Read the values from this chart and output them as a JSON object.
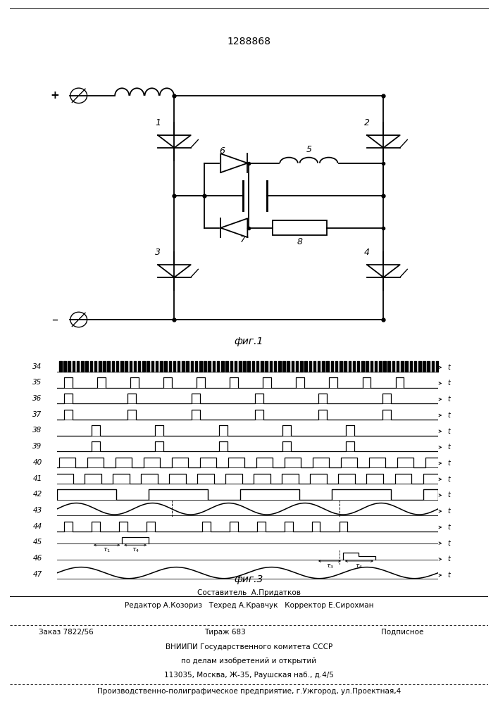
{
  "patent_number": "1288868",
  "fig1_label": "фиг.1",
  "fig3_label": "фиг.3",
  "bg_color": "#ffffff",
  "line_color": "#000000",
  "waveform_labels": [
    "34",
    "35",
    "36",
    "37",
    "38",
    "39",
    "40",
    "41",
    "42",
    "43",
    "44",
    "45",
    "46",
    "47"
  ],
  "footer_lines": [
    "Составитель  А.Придатков",
    "Редактор А.Козориз   Техред А.Кравчук   Корректор Е.Сирохман",
    "Заказ 7822/56",
    "Тираж 683",
    "Подписное",
    "ВНИИПИ Государственного комитета СССР",
    "по делам изобретений и открытий",
    "113035, Москва, Ж-35, Раушская наб., д.4/5",
    "Производственно-полиграфическое предприятие, г.Ужгород, ул.Проектная,4"
  ]
}
